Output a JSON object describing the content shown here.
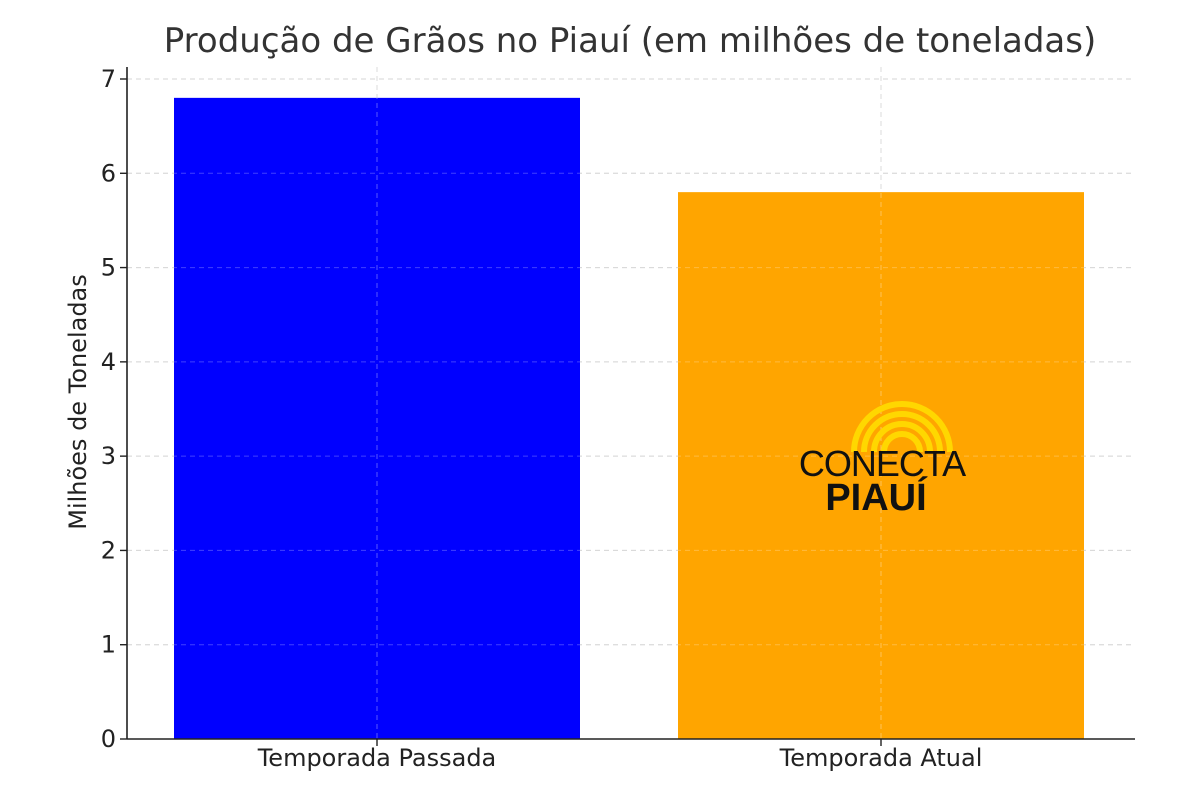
{
  "chart_data": {
    "type": "bar",
    "title": "Produção de Grãos no Piauí (em milhões de toneladas)",
    "xlabel": "",
    "ylabel": "Milhões de Toneladas",
    "categories": [
      "Temporada Passada",
      "Temporada Atual"
    ],
    "values": [
      6.8,
      5.8
    ],
    "colors": [
      "#0000ff",
      "#ffa500"
    ],
    "ylim": [
      0,
      7
    ],
    "yticks": [
      0,
      1,
      2,
      3,
      4,
      5,
      6,
      7
    ],
    "grid": true
  },
  "watermark": {
    "line1": "CONECTA",
    "line2": "PIAUÍ",
    "icon": "radio-waves-icon",
    "accent": "#ffd700"
  }
}
